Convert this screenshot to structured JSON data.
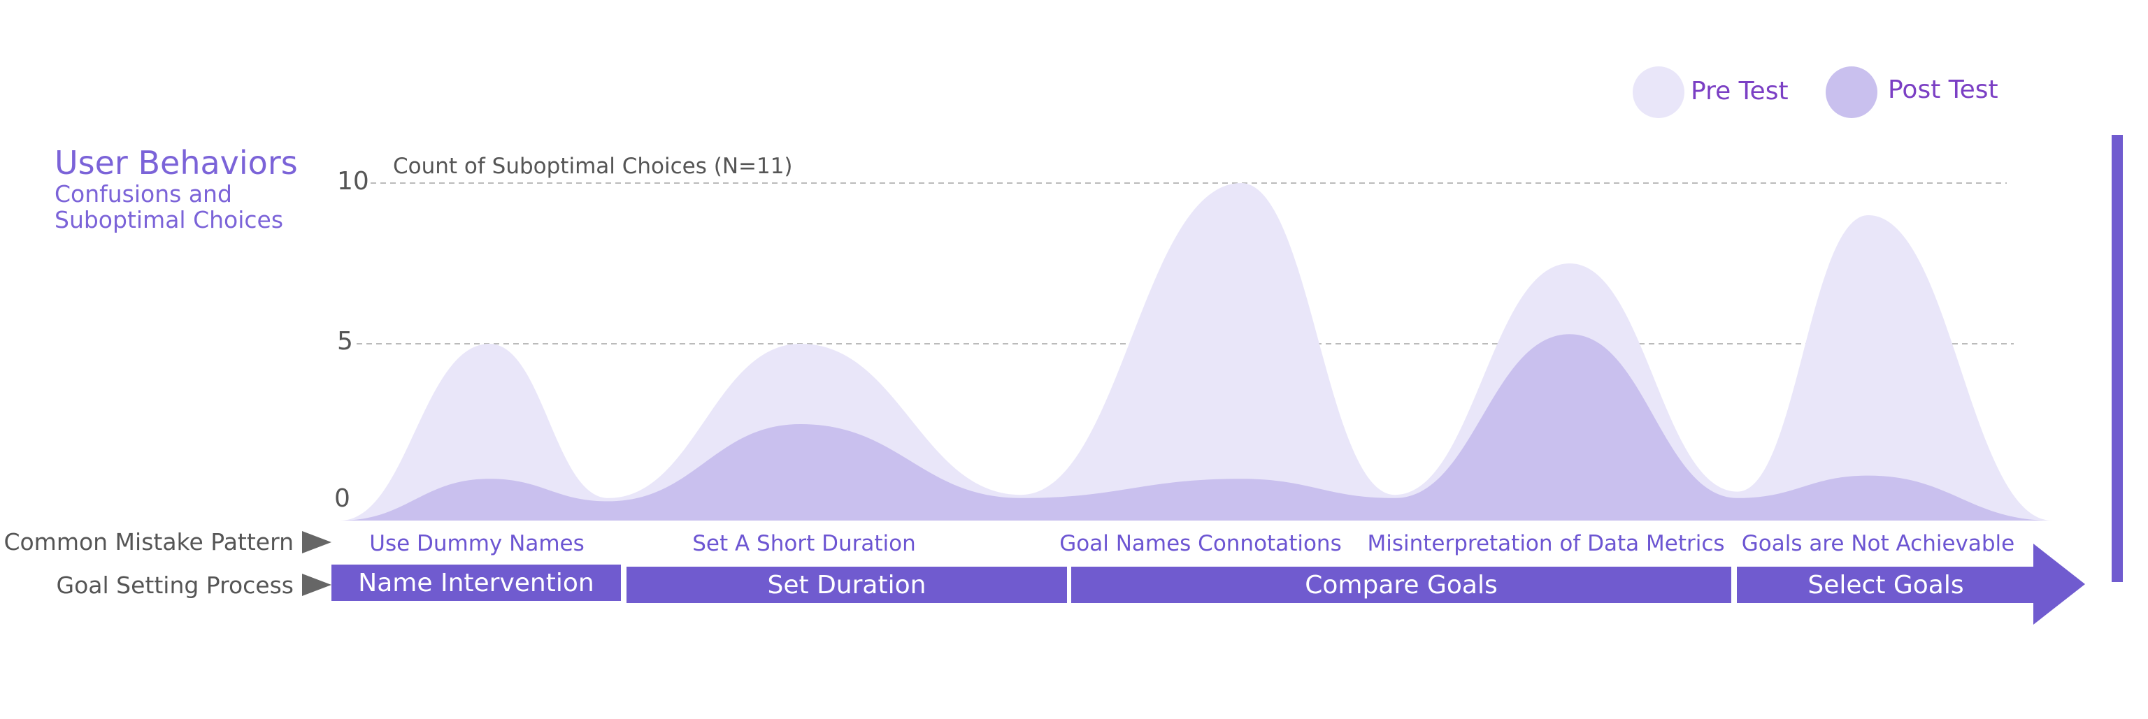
{
  "legend": {
    "pre_label": "Pre Test",
    "post_label": "Post Test",
    "pre_color": "#e9e6f9",
    "post_color": "#c9c0ee"
  },
  "side_title": {
    "main": "User Behaviors",
    "sub_line1": "Confusions and",
    "sub_line2": "Suboptimal Choices"
  },
  "rows": {
    "mistake_label": "Common Mistake Pattern",
    "process_label": "Goal Setting Process"
  },
  "mistakes": [
    "Use Dummy Names",
    "Set A Short Duration",
    "Goal Names Connotations",
    "Misinterpretation of Data Metrics",
    "Goals are Not Achievable"
  ],
  "stages": [
    "Name Intervention",
    "Set Duration",
    "Compare Goals",
    "Select Goals"
  ],
  "colors": {
    "accent": "#705bcf",
    "title": "#7b63d8",
    "grid": "#bbbbbb"
  },
  "chart_data": {
    "type": "area",
    "title": "Count of Suboptimal Choices (N=11)",
    "ylim": [
      0,
      10
    ],
    "yticks": [
      0,
      5,
      10
    ],
    "grid": "dashed horizontal at 5 and 10",
    "legend_position": "top-right",
    "x_categories": [
      "Use Dummy Names",
      "Set A Short Duration",
      "Goal Names Connotations",
      "Misinterpretation of Data Metrics",
      "Goals are Not Achievable"
    ],
    "series": [
      {
        "name": "Pre Test",
        "peaks": [
          5,
          5,
          10,
          7.5,
          9
        ]
      },
      {
        "name": "Post Test",
        "peaks": [
          0.8,
          2.5,
          0.8,
          5.3,
          0.9
        ]
      }
    ]
  }
}
